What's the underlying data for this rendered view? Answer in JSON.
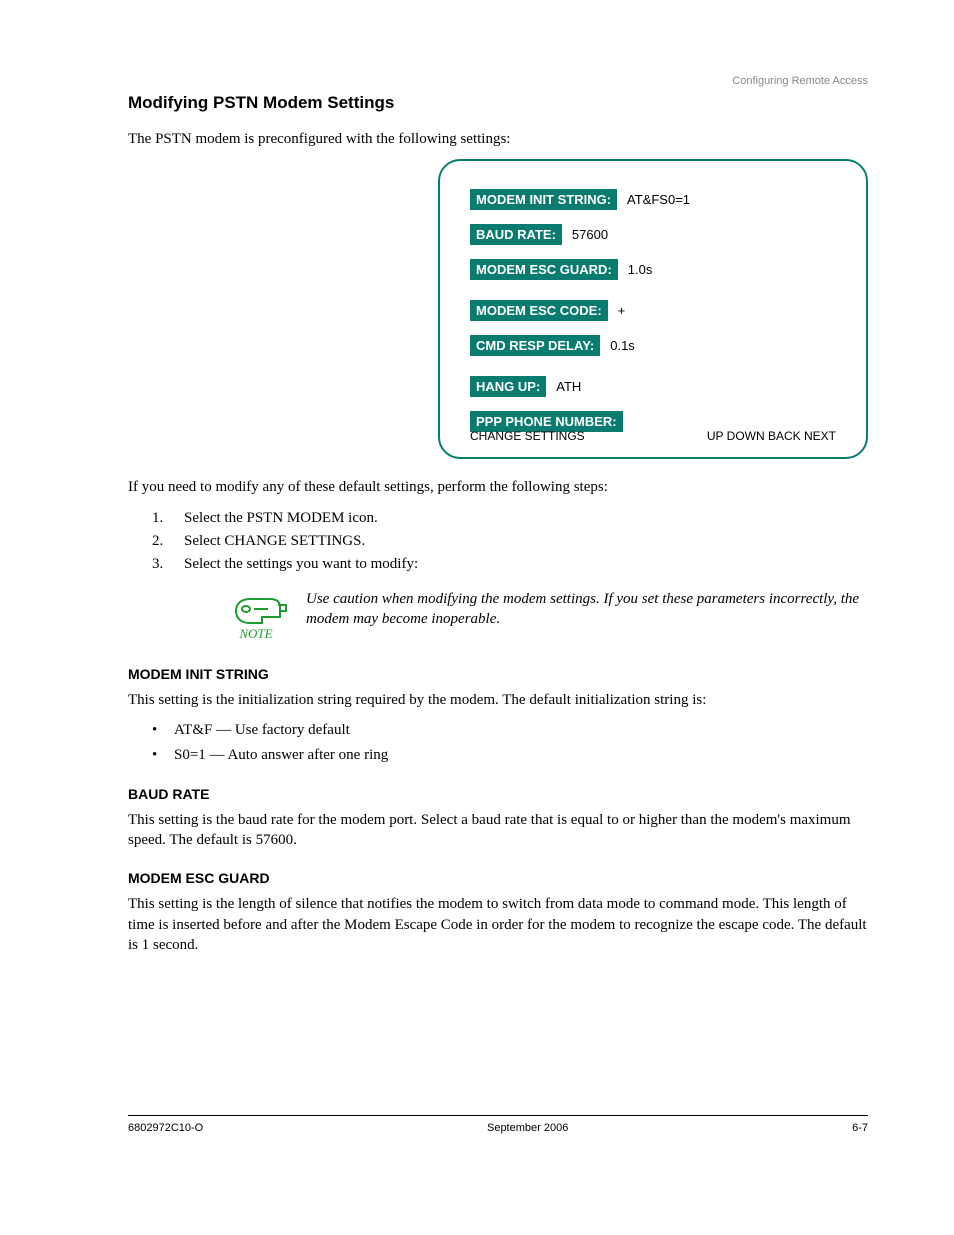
{
  "header": {
    "label": "Configuring Remote Access"
  },
  "section": {
    "title": "Modifying PSTN Modem Settings",
    "intro": "The PSTN modem is preconfigured with the following settings:",
    "screen": {
      "border_color": "#0a7c6f",
      "highlight_color": "#0a7c6f",
      "rows": [
        {
          "label": "MODEM INIT STRING:",
          "value": "AT&FS0=1"
        },
        {
          "label": "BAUD RATE:",
          "value": "57600"
        },
        {
          "label": "MODEM ESC GUARD:",
          "value": "1.0s"
        },
        {
          "label": "MODEM ESC CODE:",
          "value": "+"
        },
        {
          "label": "CMD RESP DELAY:",
          "value": "0.1s"
        },
        {
          "label": "HANG UP:",
          "value": "ATH"
        },
        {
          "label": "PPP PHONE NUMBER:",
          "value": ""
        }
      ],
      "footer_left": "CHANGE SETTINGS",
      "footer_right": "UP DOWN BACK NEXT"
    },
    "post_intro": "If you need to modify any of these default settings, perform the following steps:"
  },
  "steps": {
    "items": [
      {
        "marker": "1.",
        "text": "Select the PSTN MODEM icon."
      },
      {
        "marker": "2.",
        "text": "Select CHANGE SETTINGS."
      },
      {
        "marker": "3.",
        "text": "Select the settings you want to modify:"
      }
    ]
  },
  "note": {
    "text": "Use caution when modifying the modem settings. If you set these parameters incorrectly, the modem may become inoperable."
  },
  "modem_init": {
    "heading": "MODEM INIT STRING",
    "intro": "This setting is the initialization string required by the modem. The default initialization string is:",
    "bullets": [
      "AT&F — Use factory default",
      "S0=1 — Auto answer after one ring"
    ]
  },
  "baud_rate": {
    "heading": "BAUD RATE",
    "text": "This setting is the baud rate for the modem port. Select a baud rate that is equal to or higher than the modem's maximum speed. The default is 57600."
  },
  "modem_esc_guard": {
    "heading": "MODEM ESC GUARD",
    "text": "This setting is the length of silence that notifies the modem to switch from data mode to command mode. This length of time is inserted before and after the Modem Escape Code in order for the modem to recognize the escape code. The default is 1 second."
  },
  "footer": {
    "left": "6802972C10-O",
    "center": "September 2006",
    "right": "6-7"
  }
}
